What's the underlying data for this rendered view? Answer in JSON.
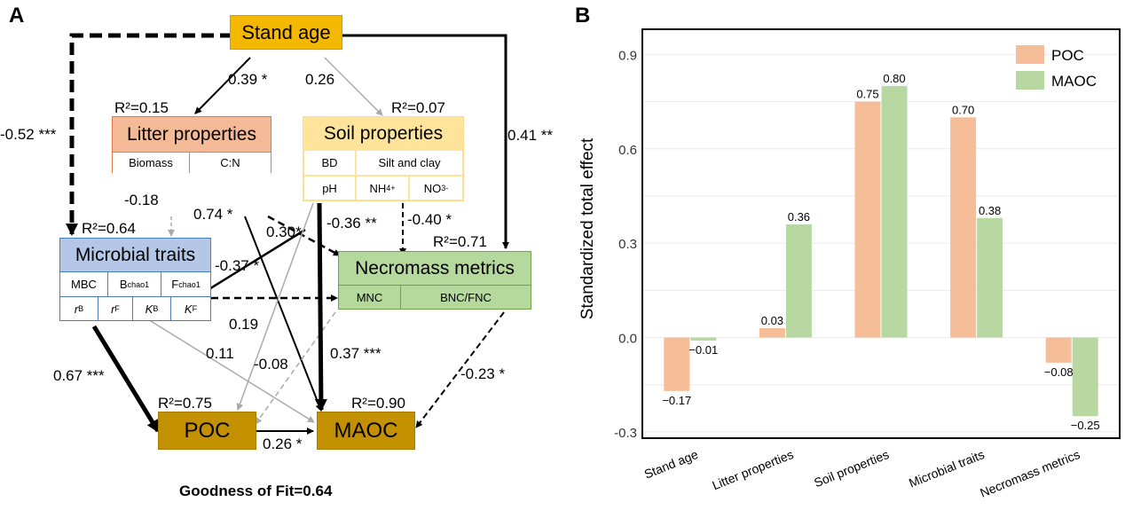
{
  "panel_a": {
    "letter": "A",
    "nodes": {
      "stand_age": {
        "label": "Stand age"
      },
      "litter": {
        "label": "Litter properties",
        "r2": "R²=0.15",
        "cells": [
          "Biomass",
          "C:N"
        ]
      },
      "soil": {
        "label": "Soil properties",
        "r2": "R²=0.07",
        "row1": [
          "BD",
          "Silt and clay"
        ],
        "row2": [
          "pH",
          "NH",
          "NO"
        ],
        "nh_sub": "4",
        "nh_sup": "+",
        "no_sub": "3",
        "no_sup": "-"
      },
      "microbial": {
        "label": "Microbial traits",
        "r2": "R²=0.64",
        "row1": [
          "MBC",
          "B",
          "F"
        ],
        "chao_sub": "chao1",
        "row2": [
          "r",
          "r",
          "K",
          "K"
        ],
        "row2_subs": [
          "B",
          "F",
          "B",
          "F"
        ]
      },
      "necromass": {
        "label": "Necromass metrics",
        "r2": "R²=0.71",
        "cells": [
          "MNC",
          "BNC/FNC"
        ]
      },
      "poc": {
        "label": "POC",
        "r2": "R²=0.75"
      },
      "maoc": {
        "label": "MAOC",
        "r2": "R²=0.90"
      }
    },
    "paths": {
      "stand_micro": "-0.52 ***",
      "stand_litter": "0.39 *",
      "stand_soil": "0.26",
      "stand_necro": "0.41 **",
      "litter_micro": "-0.18",
      "soil_micro": "0.74 *",
      "litter_maoc": "0.30*",
      "litter_necro": "-0.36 **",
      "soil_necro": "-0.40 *",
      "micro_necro": "-0.37 *",
      "soil_poc": "0.19",
      "micro_maoc": "0.11",
      "necro_poc": "-0.08",
      "soil_maoc": "0.37 ***",
      "micro_poc": "0.67 ***",
      "necro_maoc": "-0.23 *",
      "poc_maoc": "0.26 *"
    },
    "gof": "Goodness of Fit=0.64"
  },
  "panel_b": {
    "letter": "B"
  },
  "colors": {
    "stand_age": "#F5B800",
    "litter_hdr": "#F4B996",
    "litter_border": "#E07A3F",
    "soil_hdr": "#FDE49A",
    "soil_border": "#F9DD8A",
    "micro_hdr": "#B4C7E7",
    "micro_border": "#4A7CC0",
    "necro": "#B5D89C",
    "necro_border": "#6FA34C",
    "carbon": "#C39100",
    "poc_bar": "#F5BE98",
    "maoc_bar": "#B7D8A0"
  },
  "chart_data": {
    "type": "bar",
    "ylabel": "Standardized total effect",
    "xlabel": "",
    "categories": [
      "Stand age",
      "Litter properties",
      "Soil properties",
      "Microbial traits",
      "Necromass metrics"
    ],
    "series": [
      {
        "name": "POC",
        "values": [
          -0.17,
          0.03,
          0.75,
          0.7,
          -0.08
        ],
        "labels": [
          "−0.17",
          "0.03",
          "0.75",
          "0.70",
          "−0.08"
        ]
      },
      {
        "name": "MAOC",
        "values": [
          -0.01,
          0.36,
          0.8,
          0.38,
          -0.25
        ],
        "labels": [
          "−0.01",
          "0.36",
          "0.80",
          "0.38",
          "−0.25"
        ]
      }
    ],
    "ylim": [
      -0.32,
      0.98
    ],
    "yticks": [
      -0.3,
      0.0,
      0.3,
      0.6,
      0.9
    ],
    "ytick_labels": [
      "-0.3",
      "0.0",
      "0.3",
      "0.6",
      "0.9"
    ],
    "grid": true,
    "legend": "top-right"
  }
}
